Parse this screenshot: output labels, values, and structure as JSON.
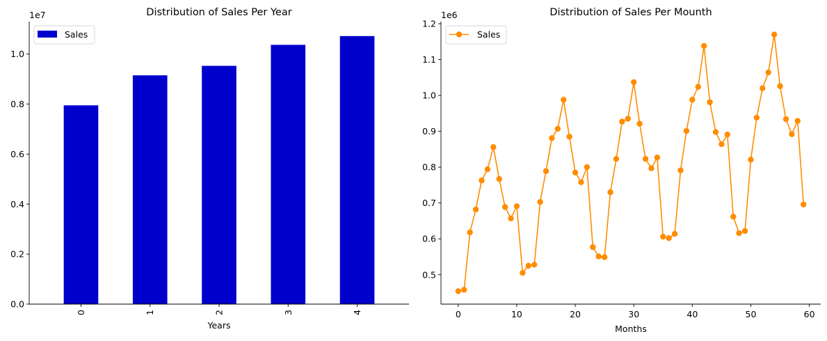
{
  "chart_data": [
    {
      "type": "bar",
      "title": "Distribution of Sales Per Year",
      "xlabel": "Years",
      "ylabel": "",
      "categories": [
        "0",
        "1",
        "2",
        "3",
        "4"
      ],
      "series": [
        {
          "name": "Sales",
          "values": [
            7950000,
            9150000,
            9530000,
            10370000,
            10720000
          ]
        }
      ],
      "ylim": [
        0,
        11300000
      ],
      "yticks": [
        0,
        2000000,
        4000000,
        6000000,
        8000000,
        10000000
      ],
      "ytick_labels": [
        "0.0",
        "0.2",
        "0.4",
        "0.6",
        "0.8",
        "1.0"
      ],
      "offset_text": "1e7",
      "color": "#0000cd",
      "legend": "top-left",
      "xtick_rotation": "vertical"
    },
    {
      "type": "line",
      "title": "Distribution of Sales Per Mounth",
      "xlabel": "Months",
      "ylabel": "",
      "x": [
        0,
        1,
        2,
        3,
        4,
        5,
        6,
        7,
        8,
        9,
        10,
        11,
        12,
        13,
        14,
        15,
        16,
        17,
        18,
        19,
        20,
        21,
        22,
        23,
        24,
        25,
        26,
        27,
        28,
        29,
        30,
        31,
        32,
        33,
        34,
        35,
        36,
        37,
        38,
        39,
        40,
        41,
        42,
        43,
        44,
        45,
        46,
        47,
        48,
        49,
        50,
        51,
        52,
        53,
        54,
        55,
        56,
        57,
        58,
        59
      ],
      "series": [
        {
          "name": "Sales",
          "values": [
            454000,
            458000,
            618000,
            682000,
            763000,
            794000,
            856000,
            767000,
            689000,
            657000,
            691000,
            505000,
            525000,
            528000,
            703000,
            789000,
            881000,
            907000,
            988000,
            885000,
            785000,
            758000,
            800000,
            577000,
            551000,
            549000,
            730000,
            823000,
            927000,
            935000,
            1037000,
            921000,
            823000,
            797000,
            827000,
            606000,
            602000,
            614000,
            791000,
            901000,
            988000,
            1024000,
            1138000,
            981000,
            898000,
            864000,
            891000,
            662000,
            616000,
            622000,
            821000,
            938000,
            1020000,
            1064000,
            1170000,
            1026000,
            934000,
            892000,
            929000,
            696000
          ]
        }
      ],
      "xlim": [
        -2.95,
        61.95
      ],
      "xticks": [
        0,
        10,
        20,
        30,
        40,
        50,
        60
      ],
      "ylim": [
        418000,
        1206000
      ],
      "yticks": [
        500000,
        600000,
        700000,
        800000,
        900000,
        1000000,
        1100000,
        1200000
      ],
      "ytick_labels": [
        "0.5",
        "0.6",
        "0.7",
        "0.8",
        "0.9",
        "1.0",
        "1.1",
        "1.2"
      ],
      "offset_text": "1e6",
      "color": "#ff8c00",
      "marker": "circle",
      "legend": "top-left"
    }
  ]
}
